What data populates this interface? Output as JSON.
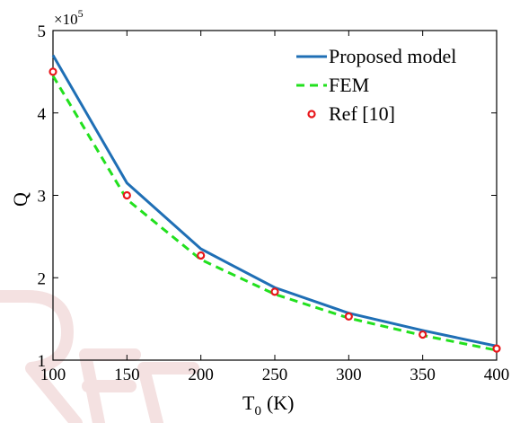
{
  "chart_data": {
    "type": "line",
    "title": "",
    "xlabel_main": "T",
    "xlabel_sub": "0",
    "xlabel_unit": "(K)",
    "ylabel": "Q",
    "y_multiplier": "×10",
    "y_multiplier_exp": "5",
    "xlim": [
      100,
      400
    ],
    "ylim": [
      1,
      5
    ],
    "xticks": [
      "100",
      "150",
      "200",
      "250",
      "300",
      "350",
      "400"
    ],
    "yticks": [
      "1",
      "2",
      "3",
      "4",
      "5"
    ],
    "legend_position": "top-right",
    "series": [
      {
        "name": "Proposed model",
        "style": "solid",
        "color": "#1f6fb5",
        "x": [
          100,
          150,
          200,
          250,
          300,
          350,
          400
        ],
        "y": [
          4.7,
          3.15,
          2.35,
          1.88,
          1.57,
          1.36,
          1.17
        ]
      },
      {
        "name": "FEM",
        "style": "dashed",
        "color": "#22e01e",
        "x": [
          100,
          150,
          200,
          250,
          300,
          350,
          400
        ],
        "y": [
          4.45,
          2.95,
          2.22,
          1.8,
          1.51,
          1.3,
          1.12
        ]
      },
      {
        "name": "Ref [10]",
        "style": "markers",
        "color": "#e8171b",
        "x": [
          100,
          150,
          200,
          250,
          300,
          350,
          400
        ],
        "y": [
          4.5,
          3.0,
          2.27,
          1.83,
          1.53,
          1.31,
          1.14
        ]
      }
    ]
  }
}
